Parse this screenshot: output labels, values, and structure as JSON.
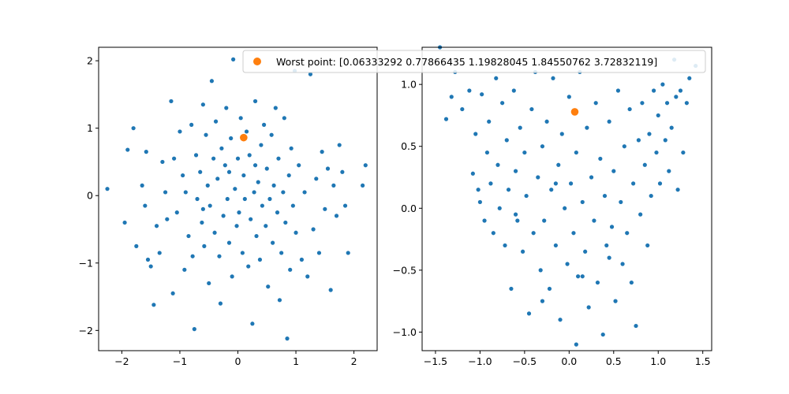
{
  "chart_data": [
    {
      "type": "scatter",
      "title": "",
      "xlabel": "",
      "ylabel": "",
      "xlim": [
        -2.4,
        2.4
      ],
      "ylim": [
        -2.3,
        2.2
      ],
      "xticks": [
        -2,
        -1,
        0,
        1,
        2
      ],
      "yticks": [
        -2,
        -1,
        0,
        1,
        2
      ],
      "grid": false,
      "series": [
        {
          "color": "#1f77b4",
          "points": [
            [
              -2.25,
              0.1
            ],
            [
              -1.95,
              -0.4
            ],
            [
              -1.9,
              0.68
            ],
            [
              -1.8,
              1.0
            ],
            [
              -1.75,
              -0.75
            ],
            [
              -1.65,
              0.15
            ],
            [
              -1.6,
              -0.15
            ],
            [
              -1.58,
              0.65
            ],
            [
              -1.55,
              -0.95
            ],
            [
              -1.5,
              -1.05
            ],
            [
              -1.45,
              -1.62
            ],
            [
              -1.4,
              -0.45
            ],
            [
              -1.35,
              -0.85
            ],
            [
              -1.3,
              0.5
            ],
            [
              -1.25,
              0.05
            ],
            [
              -1.22,
              -0.35
            ],
            [
              -1.15,
              1.4
            ],
            [
              -1.12,
              -1.45
            ],
            [
              -1.1,
              0.55
            ],
            [
              -1.05,
              -0.25
            ],
            [
              -1.0,
              0.95
            ],
            [
              -0.95,
              0.3
            ],
            [
              -0.92,
              -1.1
            ],
            [
              -0.9,
              0.05
            ],
            [
              -0.85,
              -0.6
            ],
            [
              -0.8,
              1.05
            ],
            [
              -0.78,
              -0.9
            ],
            [
              -0.75,
              -1.98
            ],
            [
              -0.72,
              0.6
            ],
            [
              -0.7,
              -0.05
            ],
            [
              -0.65,
              0.35
            ],
            [
              -0.62,
              -0.4
            ],
            [
              -0.6,
              1.35
            ],
            [
              -0.58,
              -0.75
            ],
            [
              -0.55,
              0.9
            ],
            [
              -0.52,
              0.15
            ],
            [
              -0.5,
              -1.3
            ],
            [
              -0.48,
              -0.15
            ],
            [
              -0.45,
              1.7
            ],
            [
              -0.42,
              0.55
            ],
            [
              -0.4,
              -0.55
            ],
            [
              -0.38,
              1.1
            ],
            [
              -0.35,
              0.25
            ],
            [
              -0.32,
              -0.9
            ],
            [
              -0.3,
              -1.6
            ],
            [
              -0.28,
              0.7
            ],
            [
              -0.25,
              -0.3
            ],
            [
              -0.22,
              0.45
            ],
            [
              -0.2,
              1.3
            ],
            [
              -0.18,
              -0.05
            ],
            [
              -0.15,
              -0.7
            ],
            [
              -0.12,
              0.85
            ],
            [
              -0.1,
              -1.2
            ],
            [
              -0.08,
              2.02
            ],
            [
              -0.05,
              0.1
            ],
            [
              -0.02,
              -0.45
            ],
            [
              0.0,
              0.55
            ],
            [
              0.02,
              -0.25
            ],
            [
              0.05,
              1.15
            ],
            [
              0.08,
              -0.85
            ],
            [
              0.1,
              0.3
            ],
            [
              0.12,
              -0.05
            ],
            [
              0.15,
              0.95
            ],
            [
              0.18,
              -1.05
            ],
            [
              0.2,
              0.6
            ],
            [
              0.22,
              -0.35
            ],
            [
              0.25,
              -1.9
            ],
            [
              0.28,
              0.05
            ],
            [
              0.3,
              1.4
            ],
            [
              0.32,
              -0.6
            ],
            [
              0.35,
              0.2
            ],
            [
              0.38,
              -0.95
            ],
            [
              0.4,
              0.75
            ],
            [
              0.42,
              -0.15
            ],
            [
              0.45,
              1.05
            ],
            [
              0.48,
              -0.45
            ],
            [
              0.5,
              0.4
            ],
            [
              0.52,
              -1.35
            ],
            [
              0.55,
              -0.05
            ],
            [
              0.58,
              0.9
            ],
            [
              0.6,
              -0.7
            ],
            [
              0.62,
              0.15
            ],
            [
              0.65,
              1.3
            ],
            [
              0.68,
              -0.25
            ],
            [
              0.7,
              0.55
            ],
            [
              0.72,
              -1.55
            ],
            [
              0.75,
              -0.85
            ],
            [
              0.78,
              0.05
            ],
            [
              0.8,
              1.15
            ],
            [
              0.82,
              -0.4
            ],
            [
              0.85,
              -2.12
            ],
            [
              0.88,
              0.3
            ],
            [
              0.9,
              -1.1
            ],
            [
              0.92,
              0.7
            ],
            [
              0.95,
              -0.15
            ],
            [
              0.98,
              1.85
            ],
            [
              1.0,
              -0.55
            ],
            [
              1.05,
              0.45
            ],
            [
              1.1,
              -0.95
            ],
            [
              1.15,
              0.05
            ],
            [
              1.2,
              -1.2
            ],
            [
              1.25,
              1.8
            ],
            [
              1.3,
              -0.5
            ],
            [
              1.35,
              0.25
            ],
            [
              1.4,
              -0.85
            ],
            [
              1.45,
              0.65
            ],
            [
              1.5,
              -0.2
            ],
            [
              1.55,
              0.4
            ],
            [
              1.6,
              -1.4
            ],
            [
              1.65,
              0.15
            ],
            [
              1.7,
              -0.3
            ],
            [
              1.75,
              0.75
            ],
            [
              1.8,
              0.35
            ],
            [
              1.85,
              -0.15
            ],
            [
              1.9,
              -0.85
            ],
            [
              2.15,
              0.15
            ],
            [
              2.2,
              0.45
            ],
            [
              -0.6,
              -0.2
            ],
            [
              0.3,
              0.45
            ],
            [
              -0.15,
              0.35
            ]
          ]
        },
        {
          "color": "#ff7f0e",
          "points": [
            [
              0.1,
              0.86
            ]
          ]
        }
      ]
    },
    {
      "type": "scatter",
      "title": "",
      "xlabel": "",
      "ylabel": "",
      "xlim": [
        -1.65,
        1.6
      ],
      "ylim": [
        -1.15,
        1.3
      ],
      "xticks": [
        -1.5,
        -1.0,
        -0.5,
        0.0,
        0.5,
        1.0,
        1.5
      ],
      "yticks": [
        -1.0,
        -0.5,
        0.0,
        0.5,
        1.0
      ],
      "grid": false,
      "series": [
        {
          "color": "#1f77b4",
          "points": [
            [
              -1.45,
              1.3
            ],
            [
              -1.38,
              0.72
            ],
            [
              -1.32,
              0.9
            ],
            [
              -1.28,
              1.1
            ],
            [
              -1.2,
              0.8
            ],
            [
              -1.12,
              0.95
            ],
            [
              -1.08,
              0.28
            ],
            [
              -1.05,
              0.6
            ],
            [
              -1.02,
              0.15
            ],
            [
              -1.0,
              0.05
            ],
            [
              -0.98,
              0.92
            ],
            [
              -0.95,
              -0.1
            ],
            [
              -0.92,
              0.45
            ],
            [
              -0.9,
              0.7
            ],
            [
              -0.88,
              0.2
            ],
            [
              -0.85,
              -0.2
            ],
            [
              -0.82,
              1.05
            ],
            [
              -0.8,
              0.35
            ],
            [
              -0.78,
              0.0
            ],
            [
              -0.75,
              0.85
            ],
            [
              -0.72,
              -0.3
            ],
            [
              -0.7,
              0.55
            ],
            [
              -0.68,
              0.15
            ],
            [
              -0.65,
              -0.65
            ],
            [
              -0.62,
              0.95
            ],
            [
              -0.6,
              0.3
            ],
            [
              -0.58,
              -0.1
            ],
            [
              -0.55,
              0.65
            ],
            [
              -0.52,
              -0.35
            ],
            [
              -0.5,
              0.45
            ],
            [
              -0.48,
              0.1
            ],
            [
              -0.45,
              -0.85
            ],
            [
              -0.42,
              0.8
            ],
            [
              -0.4,
              -0.2
            ],
            [
              -0.38,
              1.1
            ],
            [
              -0.35,
              0.25
            ],
            [
              -0.32,
              -0.5
            ],
            [
              -0.3,
              0.5
            ],
            [
              -0.28,
              -0.1
            ],
            [
              -0.25,
              0.7
            ],
            [
              -0.22,
              -0.65
            ],
            [
              -0.2,
              0.15
            ],
            [
              -0.18,
              1.05
            ],
            [
              -0.15,
              -0.3
            ],
            [
              -0.12,
              0.35
            ],
            [
              -0.1,
              -0.9
            ],
            [
              -0.08,
              0.6
            ],
            [
              -0.05,
              0.0
            ],
            [
              -0.02,
              -0.45
            ],
            [
              0.0,
              0.9
            ],
            [
              0.02,
              0.2
            ],
            [
              0.05,
              -0.2
            ],
            [
              0.08,
              0.45
            ],
            [
              0.1,
              -0.55
            ],
            [
              0.12,
              1.1
            ],
            [
              0.15,
              0.05
            ],
            [
              0.18,
              -0.35
            ],
            [
              0.2,
              0.65
            ],
            [
              0.22,
              -0.8
            ],
            [
              0.25,
              0.25
            ],
            [
              0.28,
              -0.1
            ],
            [
              0.3,
              0.85
            ],
            [
              0.32,
              -0.6
            ],
            [
              0.35,
              0.4
            ],
            [
              0.38,
              -1.02
            ],
            [
              0.4,
              0.1
            ],
            [
              0.42,
              -0.3
            ],
            [
              0.45,
              0.7
            ],
            [
              0.48,
              -0.15
            ],
            [
              0.5,
              0.3
            ],
            [
              0.52,
              -0.75
            ],
            [
              0.55,
              0.95
            ],
            [
              0.58,
              0.05
            ],
            [
              0.6,
              -0.45
            ],
            [
              0.62,
              0.5
            ],
            [
              0.65,
              -0.2
            ],
            [
              0.68,
              0.8
            ],
            [
              0.7,
              -0.6
            ],
            [
              0.72,
              0.2
            ],
            [
              0.75,
              -0.95
            ],
            [
              0.78,
              0.55
            ],
            [
              0.8,
              -0.05
            ],
            [
              0.82,
              0.85
            ],
            [
              0.85,
              0.35
            ],
            [
              0.88,
              -0.3
            ],
            [
              0.9,
              0.6
            ],
            [
              0.92,
              0.1
            ],
            [
              0.95,
              0.95
            ],
            [
              0.98,
              0.45
            ],
            [
              1.0,
              0.75
            ],
            [
              1.02,
              0.2
            ],
            [
              1.05,
              1.0
            ],
            [
              1.08,
              0.55
            ],
            [
              1.1,
              0.85
            ],
            [
              1.12,
              0.3
            ],
            [
              1.15,
              0.65
            ],
            [
              1.18,
              1.2
            ],
            [
              1.2,
              0.9
            ],
            [
              1.22,
              0.15
            ],
            [
              1.25,
              0.95
            ],
            [
              1.28,
              0.45
            ],
            [
              1.32,
              0.85
            ],
            [
              1.35,
              1.05
            ],
            [
              1.42,
              1.15
            ],
            [
              0.08,
              -1.1
            ],
            [
              -0.3,
              -0.75
            ],
            [
              0.15,
              -0.55
            ],
            [
              -0.6,
              -0.05
            ],
            [
              0.45,
              -0.4
            ],
            [
              -0.15,
              0.2
            ]
          ]
        },
        {
          "color": "#ff7f0e",
          "points": [
            [
              0.0633,
              0.7787
            ]
          ]
        }
      ]
    }
  ],
  "legend": {
    "label": "Worst point: [0.06333292 0.77866435 1.19828045 1.84550762 3.72832119]",
    "color": "#ff7f0e",
    "placement": "top"
  }
}
